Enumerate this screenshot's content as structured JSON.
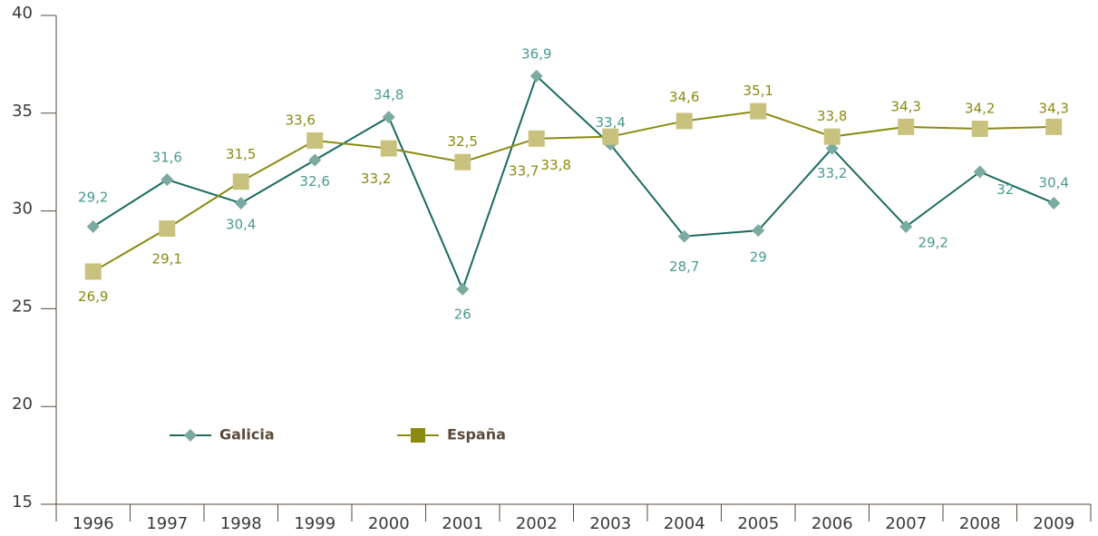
{
  "chart_data": {
    "type": "line",
    "categories": [
      "1996",
      "1997",
      "1998",
      "1999",
      "2000",
      "2001",
      "2002",
      "2003",
      "2004",
      "2005",
      "2006",
      "2007",
      "2008",
      "2009"
    ],
    "series": [
      {
        "name": "Galicia",
        "color": "#1a6a5e",
        "marker_color": "#7aaaa0",
        "label_color": "#4a9a90",
        "values": [
          29.2,
          31.6,
          30.4,
          32.6,
          34.8,
          26,
          36.9,
          33.4,
          28.7,
          29,
          33.2,
          29.2,
          32,
          30.4
        ],
        "value_labels": [
          "29,2",
          "31,6",
          "30,4",
          "32,6",
          "34,8",
          "26",
          "36,9",
          "33,4",
          "28,7",
          "29",
          "33,2",
          "29,2",
          "32",
          "30,4"
        ]
      },
      {
        "name": "España",
        "color": "#8a8a10",
        "marker_color": "#c9c27e",
        "label_color": "#8a8a10",
        "values": [
          26.9,
          29.1,
          31.5,
          33.6,
          33.2,
          32.5,
          33.7,
          33.8,
          34.6,
          35.1,
          33.8,
          34.3,
          34.2,
          34.3
        ],
        "value_labels": [
          "26,9",
          "29,1",
          "31,5",
          "33,6",
          "33,2",
          "32,5",
          "33,7",
          "33,8",
          "34,6",
          "35,1",
          "33,8",
          "34,3",
          "34,2",
          "34,3"
        ]
      }
    ],
    "ylim": [
      15,
      40
    ],
    "yticks": [
      15,
      20,
      25,
      30,
      35,
      40
    ]
  }
}
